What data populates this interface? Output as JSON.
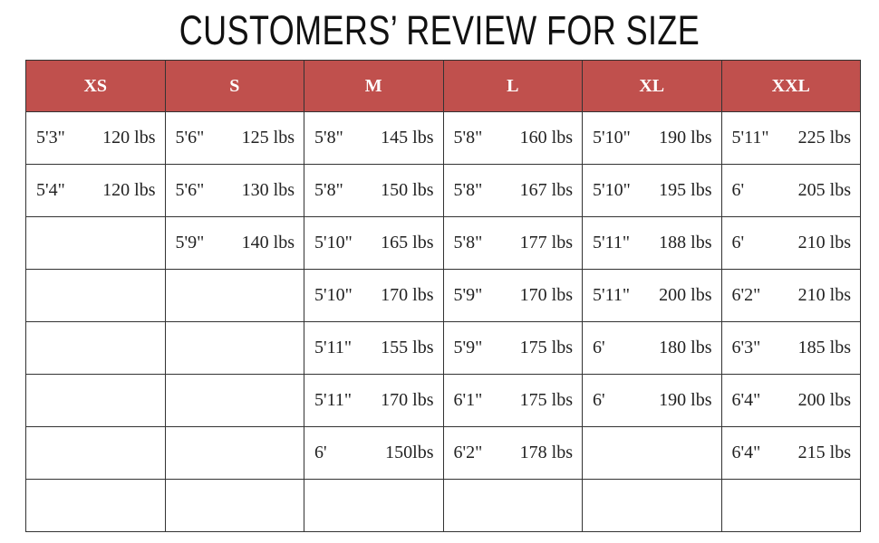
{
  "title": "CUSTOMERS’ REVIEW FOR SIZE",
  "header_color": "#c0504d",
  "sizes": [
    "XS",
    "S",
    "M",
    "L",
    "XL",
    "XXL"
  ],
  "rows": [
    [
      [
        "5'3\"",
        "120 lbs"
      ],
      [
        "5'6\"",
        "125 lbs"
      ],
      [
        "5'8\"",
        "145 lbs"
      ],
      [
        "5'8\"",
        "160 lbs"
      ],
      [
        "5'10\"",
        "190 lbs"
      ],
      [
        "5'11\"",
        "225 lbs"
      ]
    ],
    [
      [
        "5'4\"",
        "120 lbs"
      ],
      [
        "5'6\"",
        "130 lbs"
      ],
      [
        "5'8\"",
        "150 lbs"
      ],
      [
        "5'8\"",
        "167 lbs"
      ],
      [
        "5'10\"",
        "195 lbs"
      ],
      [
        "6'",
        "205 lbs"
      ]
    ],
    [
      null,
      [
        "5'9\"",
        "140 lbs"
      ],
      [
        "5'10\"",
        "165 lbs"
      ],
      [
        "5'8\"",
        "177 lbs"
      ],
      [
        "5'11\"",
        "188 lbs"
      ],
      [
        "6'",
        "210 lbs"
      ]
    ],
    [
      null,
      null,
      [
        "5'10\"",
        "170 lbs"
      ],
      [
        "5'9\"",
        "170 lbs"
      ],
      [
        "5'11\"",
        "200 lbs"
      ],
      [
        "6'2\"",
        "210 lbs"
      ]
    ],
    [
      null,
      null,
      [
        "5'11\"",
        "155 lbs"
      ],
      [
        "5'9\"",
        "175 lbs"
      ],
      [
        "6'",
        "180 lbs"
      ],
      [
        "6'3\"",
        "185 lbs"
      ]
    ],
    [
      null,
      null,
      [
        "5'11\"",
        "170 lbs"
      ],
      [
        "6'1\"",
        "175 lbs"
      ],
      [
        "6'",
        "190 lbs"
      ],
      [
        "6'4\"",
        "200 lbs"
      ]
    ],
    [
      null,
      null,
      [
        "6'",
        "150lbs"
      ],
      [
        "6'2\"",
        "178 lbs"
      ],
      null,
      [
        "6'4\"",
        "215 lbs"
      ]
    ],
    [
      null,
      null,
      null,
      null,
      null,
      null
    ]
  ]
}
